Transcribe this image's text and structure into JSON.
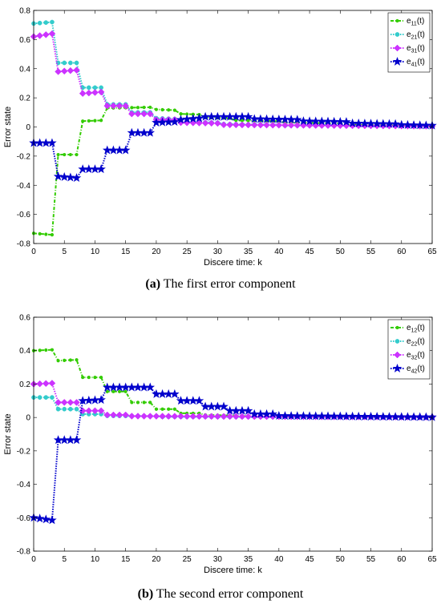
{
  "chart_data": [
    {
      "type": "line",
      "title": "",
      "xlabel": "Discere time: k",
      "ylabel": "Error state",
      "xlim": [
        0,
        65
      ],
      "ylim": [
        -0.8,
        0.8
      ],
      "xticks": [
        0,
        5,
        10,
        15,
        20,
        25,
        30,
        35,
        40,
        45,
        50,
        55,
        60,
        65
      ],
      "yticks": [
        -0.8,
        -0.6,
        -0.4,
        -0.2,
        0,
        0.2,
        0.4,
        0.6,
        0.8
      ],
      "grid": false,
      "legend_position": "top-right",
      "caption_label": "(a)",
      "caption_text": " The first error component",
      "series": [
        {
          "name_base": "e",
          "name_sub": "11",
          "name_suffix": "(t)",
          "color": "#33cc00",
          "marker": "dot",
          "linestyle": "dashdot",
          "points": [
            [
              0,
              -0.73
            ],
            [
              3,
              -0.74
            ],
            [
              4,
              -0.19
            ],
            [
              7,
              -0.19
            ],
            [
              8,
              0.04
            ],
            [
              11,
              0.045
            ],
            [
              12,
              0.13
            ],
            [
              19,
              0.135
            ],
            [
              20,
              0.12
            ],
            [
              23,
              0.115
            ],
            [
              24,
              0.09
            ],
            [
              27,
              0.085
            ],
            [
              28,
              0.065
            ],
            [
              32,
              0.06
            ],
            [
              33,
              0.045
            ],
            [
              40,
              0.04
            ],
            [
              41,
              0.03
            ],
            [
              50,
              0.025
            ],
            [
              51,
              0.015
            ],
            [
              65,
              0.008
            ]
          ]
        },
        {
          "name_base": "e",
          "name_sub": "21",
          "name_suffix": "(t)",
          "color": "#33cccc",
          "marker": "circle",
          "linestyle": "dotted",
          "points": [
            [
              0,
              0.71
            ],
            [
              3,
              0.72
            ],
            [
              4,
              0.44
            ],
            [
              7,
              0.44
            ],
            [
              8,
              0.27
            ],
            [
              11,
              0.27
            ],
            [
              12,
              0.155
            ],
            [
              15,
              0.155
            ],
            [
              16,
              0.1
            ],
            [
              19,
              0.1
            ],
            [
              20,
              0.06
            ],
            [
              23,
              0.055
            ],
            [
              24,
              0.035
            ],
            [
              30,
              0.03
            ],
            [
              31,
              0.02
            ],
            [
              40,
              0.015
            ],
            [
              41,
              0.01
            ],
            [
              65,
              0.005
            ]
          ]
        },
        {
          "name_base": "e",
          "name_sub": "31",
          "name_suffix": "(t)",
          "color": "#cc33ff",
          "marker": "diamond",
          "linestyle": "dotted",
          "points": [
            [
              0,
              0.62
            ],
            [
              3,
              0.64
            ],
            [
              4,
              0.38
            ],
            [
              7,
              0.39
            ],
            [
              8,
              0.23
            ],
            [
              11,
              0.24
            ],
            [
              12,
              0.145
            ],
            [
              15,
              0.145
            ],
            [
              16,
              0.09
            ],
            [
              19,
              0.09
            ],
            [
              20,
              0.05
            ],
            [
              23,
              0.05
            ],
            [
              24,
              0.03
            ],
            [
              30,
              0.025
            ],
            [
              31,
              0.015
            ],
            [
              65,
              0.005
            ]
          ]
        },
        {
          "name_base": "e",
          "name_sub": "41",
          "name_suffix": "(t)",
          "color": "#0000cc",
          "marker": "star",
          "linestyle": "dotted",
          "points": [
            [
              0,
              -0.11
            ],
            [
              3,
              -0.11
            ],
            [
              4,
              -0.34
            ],
            [
              7,
              -0.35
            ],
            [
              8,
              -0.29
            ],
            [
              11,
              -0.29
            ],
            [
              12,
              -0.16
            ],
            [
              15,
              -0.16
            ],
            [
              16,
              -0.04
            ],
            [
              19,
              -0.04
            ],
            [
              20,
              0.03
            ],
            [
              23,
              0.035
            ],
            [
              24,
              0.05
            ],
            [
              27,
              0.06
            ],
            [
              28,
              0.07
            ],
            [
              35,
              0.07
            ],
            [
              36,
              0.055
            ],
            [
              43,
              0.05
            ],
            [
              44,
              0.04
            ],
            [
              51,
              0.035
            ],
            [
              52,
              0.025
            ],
            [
              59,
              0.02
            ],
            [
              60,
              0.015
            ],
            [
              65,
              0.01
            ]
          ]
        }
      ]
    },
    {
      "type": "line",
      "title": "",
      "xlabel": "Discere time: k",
      "ylabel": "Error state",
      "xlim": [
        0,
        65
      ],
      "ylim": [
        -0.8,
        0.6
      ],
      "xticks": [
        0,
        5,
        10,
        15,
        20,
        25,
        30,
        35,
        40,
        45,
        50,
        55,
        60,
        65
      ],
      "yticks": [
        -0.8,
        -0.6,
        -0.4,
        -0.2,
        0,
        0.2,
        0.4,
        0.6
      ],
      "grid": false,
      "legend_position": "top-right",
      "caption_label": "(b)",
      "caption_text": " The second error component",
      "series": [
        {
          "name_base": "e",
          "name_sub": "12",
          "name_suffix": "(t)",
          "color": "#33cc00",
          "marker": "dot",
          "linestyle": "dashdot",
          "points": [
            [
              0,
              0.4
            ],
            [
              3,
              0.405
            ],
            [
              4,
              0.34
            ],
            [
              7,
              0.345
            ],
            [
              8,
              0.24
            ],
            [
              11,
              0.24
            ],
            [
              12,
              0.155
            ],
            [
              15,
              0.155
            ],
            [
              16,
              0.09
            ],
            [
              19,
              0.09
            ],
            [
              20,
              0.05
            ],
            [
              23,
              0.05
            ],
            [
              24,
              0.025
            ],
            [
              27,
              0.025
            ],
            [
              28,
              0.015
            ],
            [
              35,
              0.01
            ],
            [
              36,
              0.005
            ],
            [
              65,
              0.002
            ]
          ]
        },
        {
          "name_base": "e",
          "name_sub": "22",
          "name_suffix": "(t)",
          "color": "#33cccc",
          "marker": "circle",
          "linestyle": "dotted",
          "points": [
            [
              0,
              0.12
            ],
            [
              3,
              0.12
            ],
            [
              4,
              0.05
            ],
            [
              7,
              0.05
            ],
            [
              8,
              0.02
            ],
            [
              11,
              0.02
            ],
            [
              12,
              0.01
            ],
            [
              20,
              0.008
            ],
            [
              21,
              0.004
            ],
            [
              65,
              0.001
            ]
          ]
        },
        {
          "name_base": "e",
          "name_sub": "32",
          "name_suffix": "(t)",
          "color": "#cc33ff",
          "marker": "diamond",
          "linestyle": "dotted",
          "points": [
            [
              0,
              0.2
            ],
            [
              3,
              0.205
            ],
            [
              4,
              0.09
            ],
            [
              7,
              0.09
            ],
            [
              8,
              0.04
            ],
            [
              11,
              0.04
            ],
            [
              12,
              0.015
            ],
            [
              15,
              0.015
            ],
            [
              16,
              0.008
            ],
            [
              65,
              0.002
            ]
          ]
        },
        {
          "name_base": "e",
          "name_sub": "42",
          "name_suffix": "(t)",
          "color": "#0000cc",
          "marker": "star",
          "linestyle": "dotted",
          "points": [
            [
              0,
              -0.6
            ],
            [
              3,
              -0.615
            ],
            [
              4,
              -0.135
            ],
            [
              7,
              -0.135
            ],
            [
              8,
              0.1
            ],
            [
              11,
              0.105
            ],
            [
              12,
              0.18
            ],
            [
              19,
              0.18
            ],
            [
              20,
              0.14
            ],
            [
              23,
              0.14
            ],
            [
              24,
              0.1
            ],
            [
              27,
              0.1
            ],
            [
              28,
              0.065
            ],
            [
              31,
              0.065
            ],
            [
              32,
              0.04
            ],
            [
              35,
              0.04
            ],
            [
              36,
              0.02
            ],
            [
              39,
              0.02
            ],
            [
              40,
              0.01
            ],
            [
              65,
              0.002
            ]
          ]
        }
      ]
    }
  ]
}
